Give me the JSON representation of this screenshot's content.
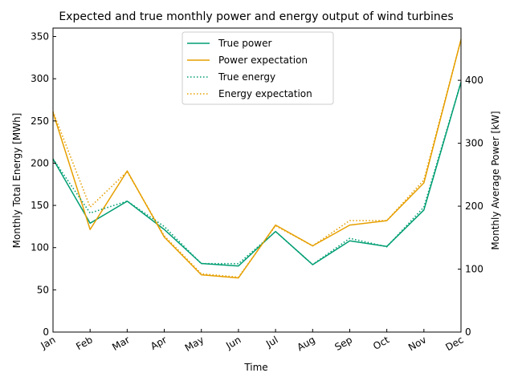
{
  "chart_data": {
    "type": "line",
    "title": "Expected and true monthly power and energy output of wind turbines",
    "xlabel": "Time",
    "ylabel_left": "Monthly Total Energy [MWh]",
    "ylabel_right": "Monthly Average Power [kW]",
    "categories": [
      "Jan",
      "Feb",
      "Mar",
      "Apr",
      "May",
      "Jun",
      "Jul",
      "Aug",
      "Sep",
      "Oct",
      "Nov",
      "Dec"
    ],
    "ylim_left": [
      0,
      360
    ],
    "yticks_left": [
      0,
      50,
      100,
      150,
      200,
      250,
      300,
      350
    ],
    "ylim_right": [
      0,
      483
    ],
    "yticks_right": [
      0,
      100,
      200,
      300,
      400
    ],
    "legend_position": "upper center",
    "grid": false,
    "series": [
      {
        "name": "True power",
        "axis": "right",
        "style": "solid",
        "color": "#009e73",
        "values": [
          275,
          173,
          208,
          163,
          109,
          105,
          160,
          107,
          145,
          136,
          194,
          397
        ]
      },
      {
        "name": "Power expectation",
        "axis": "right",
        "style": "solid",
        "color": "#e69f00",
        "values": [
          349,
          163,
          256,
          151,
          91,
          86,
          170,
          137,
          170,
          177,
          237,
          465
        ]
      },
      {
        "name": "True energy",
        "axis": "left",
        "style": "dotted",
        "color": "#009e73",
        "values": [
          205,
          141,
          155,
          125,
          81,
          81,
          119,
          80,
          111,
          101,
          148,
          296
        ]
      },
      {
        "name": "Energy expectation",
        "axis": "left",
        "style": "dotted",
        "color": "#e69f00",
        "values": [
          261,
          148,
          190,
          114,
          69,
          65,
          126,
          102,
          132,
          132,
          180,
          346
        ]
      }
    ]
  }
}
